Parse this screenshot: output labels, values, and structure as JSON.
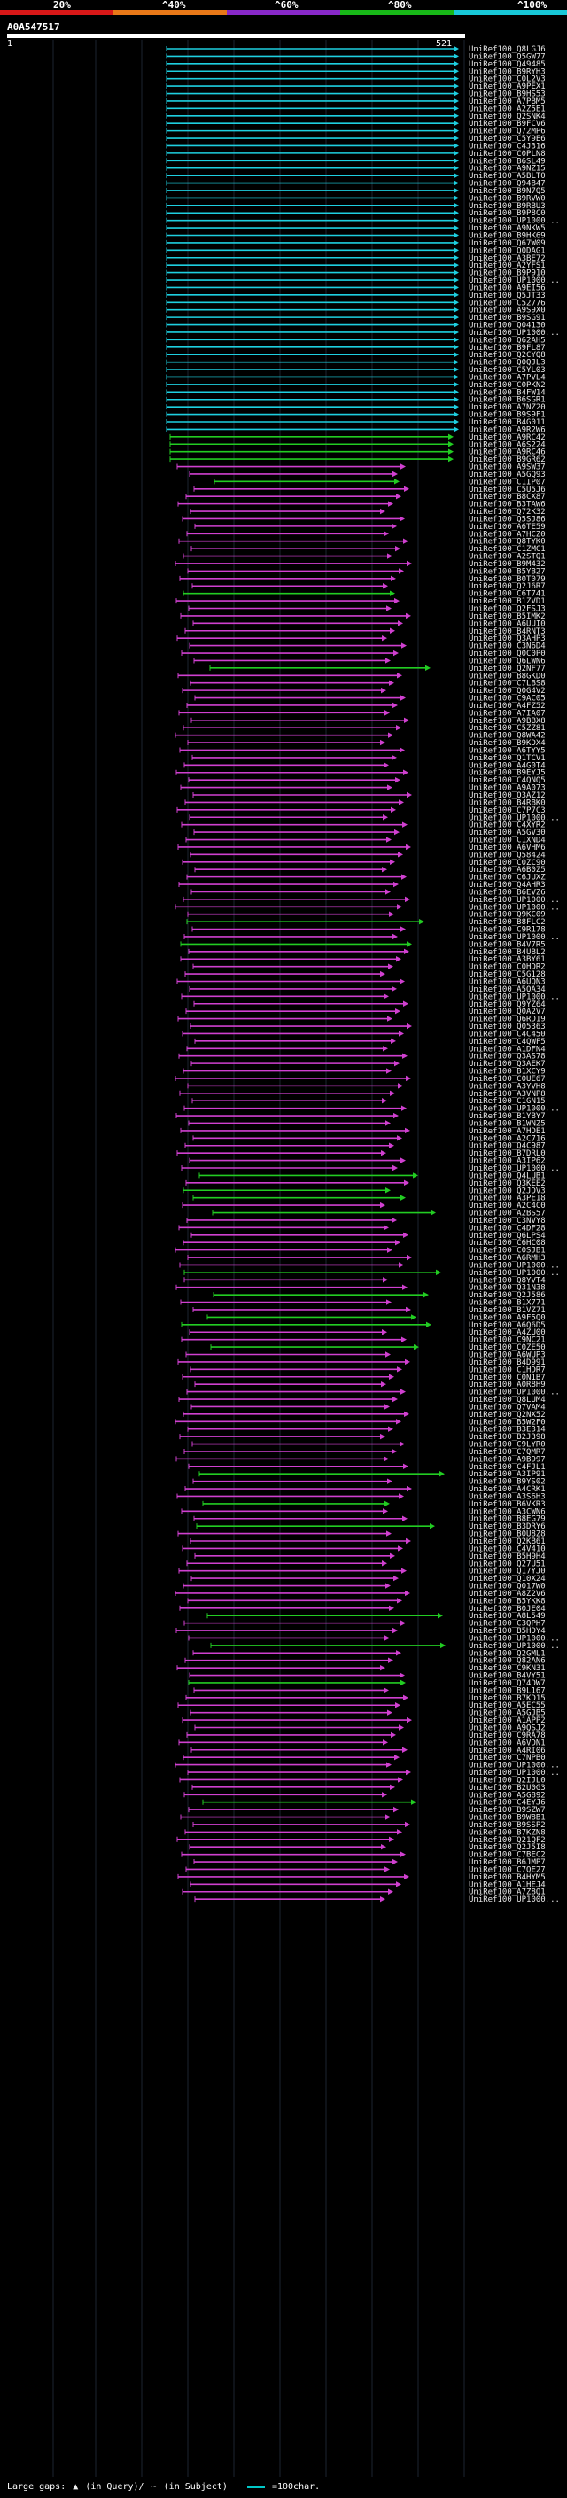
{
  "colorbar": {
    "labels": [
      "20%",
      "^40%",
      "^60%",
      "^80%",
      "^100%"
    ],
    "colors": [
      "#d81818",
      "#e87818",
      "#8828c8",
      "#18b818",
      "#18c8d8"
    ]
  },
  "query": {
    "id": "A0A547517",
    "start": "1",
    "end": "521"
  },
  "hit_colors": {
    "cyan": "#1ecfe0",
    "green": "#22cc22",
    "magenta": "#d040d0"
  },
  "hits": [
    {
      "id": "UniRef100_Q8LGJ6",
      "c": "cyan"
    },
    {
      "id": "UniRef100_Q5GW77",
      "c": "cyan"
    },
    {
      "id": "UniRef100_Q49485",
      "c": "cyan"
    },
    {
      "id": "UniRef100_B9RYH3",
      "c": "cyan"
    },
    {
      "id": "UniRef100_C0L2V3",
      "c": "cyan"
    },
    {
      "id": "UniRef100_A9PEX1",
      "c": "cyan"
    },
    {
      "id": "UniRef100_B9HS53",
      "c": "cyan"
    },
    {
      "id": "UniRef100_A7PBM5",
      "c": "cyan"
    },
    {
      "id": "UniRef100_A2Z5E1",
      "c": "cyan"
    },
    {
      "id": "UniRef100_Q2SNK4",
      "c": "cyan"
    },
    {
      "id": "UniRef100_B9FCV6",
      "c": "cyan"
    },
    {
      "id": "UniRef100_Q72MP6",
      "c": "cyan"
    },
    {
      "id": "UniRef100_C5Y9E6",
      "c": "cyan"
    },
    {
      "id": "UniRef100_C4J316",
      "c": "cyan"
    },
    {
      "id": "UniRef100_C0PLN8",
      "c": "cyan"
    },
    {
      "id": "UniRef100_B6SL49",
      "c": "cyan"
    },
    {
      "id": "UniRef100_A9NZ15",
      "c": "cyan"
    },
    {
      "id": "UniRef100_A5BLT0",
      "c": "cyan"
    },
    {
      "id": "UniRef100_Q94B47",
      "c": "cyan"
    },
    {
      "id": "UniRef100_B9N7Q5",
      "c": "cyan"
    },
    {
      "id": "UniRef100_B9RVW0",
      "c": "cyan"
    },
    {
      "id": "UniRef100_B9RBU3",
      "c": "cyan"
    },
    {
      "id": "UniRef100_B9P8C0",
      "c": "cyan"
    },
    {
      "id": "UniRef100_UP1000...",
      "c": "cyan"
    },
    {
      "id": "UniRef100_A9NKW5",
      "c": "cyan"
    },
    {
      "id": "UniRef100_B9HK69",
      "c": "cyan"
    },
    {
      "id": "UniRef100_Q67W09",
      "c": "cyan"
    },
    {
      "id": "UniRef100_Q0DAG1",
      "c": "cyan"
    },
    {
      "id": "UniRef100_A3BE72",
      "c": "cyan"
    },
    {
      "id": "UniRef100_A2YFS1",
      "c": "cyan"
    },
    {
      "id": "UniRef100_B9P910",
      "c": "cyan"
    },
    {
      "id": "UniRef100_UP1000...",
      "c": "cyan"
    },
    {
      "id": "UniRef100_A9EI56",
      "c": "cyan"
    },
    {
      "id": "UniRef100_Q5JT33",
      "c": "cyan"
    },
    {
      "id": "UniRef100_C52776",
      "c": "cyan"
    },
    {
      "id": "UniRef100_A9S9X0",
      "c": "cyan"
    },
    {
      "id": "UniRef100_B9SG91",
      "c": "cyan"
    },
    {
      "id": "UniRef100_Q04130",
      "c": "cyan"
    },
    {
      "id": "UniRef100_UP1000...",
      "c": "cyan"
    },
    {
      "id": "UniRef100_Q62AH5",
      "c": "cyan"
    },
    {
      "id": "UniRef100_B9FL87",
      "c": "cyan"
    },
    {
      "id": "UniRef100_Q2CYQ8",
      "c": "cyan"
    },
    {
      "id": "UniRef100_Q0QJL3",
      "c": "cyan"
    },
    {
      "id": "UniRef100_C5YL03",
      "c": "cyan"
    },
    {
      "id": "UniRef100_A7PVL4",
      "c": "cyan"
    },
    {
      "id": "UniRef100_C0PKN2",
      "c": "cyan"
    },
    {
      "id": "UniRef100_B4FW14",
      "c": "cyan"
    },
    {
      "id": "UniRef100_B6SGR1",
      "c": "cyan"
    },
    {
      "id": "UniRef100_A7NZ20",
      "c": "cyan"
    },
    {
      "id": "UniRef100_B9S9F1",
      "c": "cyan"
    },
    {
      "id": "UniRef100_B4G011",
      "c": "cyan"
    },
    {
      "id": "UniRef100_A9R2W6",
      "c": "cyan"
    },
    {
      "id": "UniRef100_A9RC42",
      "c": "green"
    },
    {
      "id": "UniRef100_A6S224",
      "c": "green"
    },
    {
      "id": "UniRef100_A9RC46",
      "c": "green"
    },
    {
      "id": "UniRef100_B9GR62",
      "c": "green"
    },
    {
      "id": "UniRef100_A9SW37",
      "c": "magenta"
    },
    {
      "id": "UniRef100_A5GQ93",
      "c": "magenta"
    },
    {
      "id": "UniRef100_C1IP07",
      "c": "green"
    },
    {
      "id": "UniRef100_C5U5J6",
      "c": "magenta"
    },
    {
      "id": "UniRef100_B8CX87",
      "c": "magenta"
    },
    {
      "id": "UniRef100_B3TAW6",
      "c": "magenta"
    },
    {
      "id": "UniRef100_Q72K32",
      "c": "magenta"
    },
    {
      "id": "UniRef100_Q5SJ86",
      "c": "magenta"
    },
    {
      "id": "UniRef100_A6TE59",
      "c": "magenta"
    },
    {
      "id": "UniRef100_A7HCZ0",
      "c": "magenta"
    },
    {
      "id": "UniRef100_Q8TYK0",
      "c": "magenta"
    },
    {
      "id": "UniRef100_C1ZMC1",
      "c": "magenta"
    },
    {
      "id": "UniRef100_A2STQ1",
      "c": "magenta"
    },
    {
      "id": "UniRef100_B9M432",
      "c": "magenta"
    },
    {
      "id": "UniRef100_B5YB27",
      "c": "magenta"
    },
    {
      "id": "UniRef100_B0T079",
      "c": "magenta"
    },
    {
      "id": "UniRef100_Q2J6R7",
      "c": "magenta"
    },
    {
      "id": "UniRef100_C6T741",
      "c": "green"
    },
    {
      "id": "UniRef100_B1ZVD1",
      "c": "magenta"
    },
    {
      "id": "UniRef100_Q2FSJ3",
      "c": "magenta"
    },
    {
      "id": "UniRef100_B5IMK2",
      "c": "magenta"
    },
    {
      "id": "UniRef100_A6UUI0",
      "c": "magenta"
    },
    {
      "id": "UniRef100_B4RNT3",
      "c": "magenta"
    },
    {
      "id": "UniRef100_Q3AHP3",
      "c": "magenta"
    },
    {
      "id": "UniRef100_C3N6D4",
      "c": "magenta"
    },
    {
      "id": "UniRef100_Q0C0P0",
      "c": "magenta"
    },
    {
      "id": "UniRef100_Q6LWN6",
      "c": "magenta"
    },
    {
      "id": "UniRef100_Q2NF77",
      "c": "green"
    },
    {
      "id": "UniRef100_B8GKD0",
      "c": "magenta"
    },
    {
      "id": "UniRef100_C7LBS8",
      "c": "magenta"
    },
    {
      "id": "UniRef100_Q0G4V2",
      "c": "magenta"
    },
    {
      "id": "UniRef100_C9AC05",
      "c": "magenta"
    },
    {
      "id": "UniRef100_A4FZ52",
      "c": "magenta"
    },
    {
      "id": "UniRef100_A7IA07",
      "c": "magenta"
    },
    {
      "id": "UniRef100_A9BBX8",
      "c": "magenta"
    },
    {
      "id": "UniRef100_C5ZZ81",
      "c": "magenta"
    },
    {
      "id": "UniRef100_Q8WA42",
      "c": "magenta"
    },
    {
      "id": "UniRef100_B9KDX4",
      "c": "magenta"
    },
    {
      "id": "UniRef100_A6TYY5",
      "c": "magenta"
    },
    {
      "id": "UniRef100_Q1TCV1",
      "c": "magenta"
    },
    {
      "id": "UniRef100_A4G0T4",
      "c": "magenta"
    },
    {
      "id": "UniRef100_B9EYJ5",
      "c": "magenta"
    },
    {
      "id": "UniRef100_C4QNQ5",
      "c": "magenta"
    },
    {
      "id": "UniRef100_A9A073",
      "c": "magenta"
    },
    {
      "id": "UniRef100_Q3AZ12",
      "c": "magenta"
    },
    {
      "id": "UniRef100_B4RBK0",
      "c": "magenta"
    },
    {
      "id": "UniRef100_C7P7C3",
      "c": "magenta"
    },
    {
      "id": "UniRef100_UP1000...",
      "c": "magenta"
    },
    {
      "id": "UniRef100_C4XYR2",
      "c": "magenta"
    },
    {
      "id": "UniRef100_A5GV30",
      "c": "magenta"
    },
    {
      "id": "UniRef100_C1XND4",
      "c": "magenta"
    },
    {
      "id": "UniRef100_A6VHM6",
      "c": "magenta"
    },
    {
      "id": "UniRef100_Q58424",
      "c": "magenta"
    },
    {
      "id": "UniRef100_C0ZC90",
      "c": "magenta"
    },
    {
      "id": "UniRef100_A6B0Z5",
      "c": "magenta"
    },
    {
      "id": "UniRef100_C6JUXZ",
      "c": "magenta"
    },
    {
      "id": "UniRef100_Q4AHR3",
      "c": "magenta"
    },
    {
      "id": "UniRef100_B6EVZ6",
      "c": "magenta"
    },
    {
      "id": "UniRef100_UP1000...",
      "c": "magenta"
    },
    {
      "id": "UniRef100_UP1000...",
      "c": "magenta"
    },
    {
      "id": "UniRef100_Q9KC09",
      "c": "magenta"
    },
    {
      "id": "UniRef100_B8FLC2",
      "c": "green"
    },
    {
      "id": "UniRef100_C9R178",
      "c": "magenta"
    },
    {
      "id": "UniRef100_UP1000...",
      "c": "magenta"
    },
    {
      "id": "UniRef100_B4V7R5",
      "c": "green"
    },
    {
      "id": "UniRef100_B4UBL2",
      "c": "magenta"
    },
    {
      "id": "UniRef100_A3BY61",
      "c": "magenta"
    },
    {
      "id": "UniRef100_C0HDR2",
      "c": "magenta"
    },
    {
      "id": "UniRef100_C5G128",
      "c": "magenta"
    },
    {
      "id": "UniRef100_A6UQN3",
      "c": "magenta"
    },
    {
      "id": "UniRef100_A5QA34",
      "c": "magenta"
    },
    {
      "id": "UniRef100_UP1000...",
      "c": "magenta"
    },
    {
      "id": "UniRef100_Q9YZ64",
      "c": "magenta"
    },
    {
      "id": "UniRef100_Q0A2V7",
      "c": "magenta"
    },
    {
      "id": "UniRef100_Q6RD19",
      "c": "magenta"
    },
    {
      "id": "UniRef100_Q05363",
      "c": "magenta"
    },
    {
      "id": "UniRef100_C4C450",
      "c": "magenta"
    },
    {
      "id": "UniRef100_C4QWF5",
      "c": "magenta"
    },
    {
      "id": "UniRef100_A1DFN4",
      "c": "magenta"
    },
    {
      "id": "UniRef100_Q3AS78",
      "c": "magenta"
    },
    {
      "id": "UniRef100_Q3AEK7",
      "c": "magenta"
    },
    {
      "id": "UniRef100_B1XCY9",
      "c": "magenta"
    },
    {
      "id": "UniRef100_C0UE67",
      "c": "magenta"
    },
    {
      "id": "UniRef100_A3YVH8",
      "c": "magenta"
    },
    {
      "id": "UniRef100_A3VNP8",
      "c": "magenta"
    },
    {
      "id": "UniRef100_C1GN15",
      "c": "magenta"
    },
    {
      "id": "UniRef100_UP1000...",
      "c": "magenta"
    },
    {
      "id": "UniRef100_B1YBY7",
      "c": "magenta"
    },
    {
      "id": "UniRef100_B1WNZ5",
      "c": "magenta"
    },
    {
      "id": "UniRef100_A7HDE1",
      "c": "magenta"
    },
    {
      "id": "UniRef100_A2C716",
      "c": "magenta"
    },
    {
      "id": "UniRef100_Q4C987",
      "c": "magenta"
    },
    {
      "id": "UniRef100_B7DRL0",
      "c": "magenta"
    },
    {
      "id": "UniRef100_A3IP62",
      "c": "magenta"
    },
    {
      "id": "UniRef100_UP1000...",
      "c": "magenta"
    },
    {
      "id": "UniRef100_Q4LUB1",
      "c": "green"
    },
    {
      "id": "UniRef100_Q3KEE2",
      "c": "magenta"
    },
    {
      "id": "UniRef100_Q2JDV3",
      "c": "green"
    },
    {
      "id": "UniRef100_A3PE18",
      "c": "green"
    },
    {
      "id": "UniRef100_A2C4C0",
      "c": "magenta"
    },
    {
      "id": "UniRef100_A2BS57",
      "c": "green"
    },
    {
      "id": "UniRef100_C3NVY8",
      "c": "magenta"
    },
    {
      "id": "UniRef100_C4DF28",
      "c": "magenta"
    },
    {
      "id": "UniRef100_Q6LPS4",
      "c": "magenta"
    },
    {
      "id": "UniRef100_C6HC08",
      "c": "magenta"
    },
    {
      "id": "UniRef100_C0SJB1",
      "c": "magenta"
    },
    {
      "id": "UniRef100_A6RMH3",
      "c": "magenta"
    },
    {
      "id": "UniRef100_UP1000...",
      "c": "magenta"
    },
    {
      "id": "UniRef100_UP1000...",
      "c": "green"
    },
    {
      "id": "UniRef100_Q8YVT4",
      "c": "magenta"
    },
    {
      "id": "UniRef100_Q31N38",
      "c": "magenta"
    },
    {
      "id": "UniRef100_Q2J586",
      "c": "green"
    },
    {
      "id": "UniRef100_B1X771",
      "c": "magenta"
    },
    {
      "id": "UniRef100_B1VZ71",
      "c": "magenta"
    },
    {
      "id": "UniRef100_A9F5Q0",
      "c": "green"
    },
    {
      "id": "UniRef100_A6Q6D5",
      "c": "green"
    },
    {
      "id": "UniRef100_A4ZU00",
      "c": "magenta"
    },
    {
      "id": "UniRef100_C9NC21",
      "c": "magenta"
    },
    {
      "id": "UniRef100_C0ZE50",
      "c": "green"
    },
    {
      "id": "UniRef100_A6WUP3",
      "c": "magenta"
    },
    {
      "id": "UniRef100_B4D991",
      "c": "magenta"
    },
    {
      "id": "UniRef100_C1HDR7",
      "c": "magenta"
    },
    {
      "id": "UniRef100_C0N1B7",
      "c": "magenta"
    },
    {
      "id": "UniRef100_A0R8H9",
      "c": "magenta"
    },
    {
      "id": "UniRef100_UP1000...",
      "c": "magenta"
    },
    {
      "id": "UniRef100_Q8LUM4",
      "c": "magenta"
    },
    {
      "id": "UniRef100_Q7VAM4",
      "c": "magenta"
    },
    {
      "id": "UniRef100_Q2NX52",
      "c": "magenta"
    },
    {
      "id": "UniRef100_B5W2F0",
      "c": "magenta"
    },
    {
      "id": "UniRef100_B3E314",
      "c": "magenta"
    },
    {
      "id": "UniRef100_B2J398",
      "c": "magenta"
    },
    {
      "id": "UniRef100_C9LYR0",
      "c": "magenta"
    },
    {
      "id": "UniRef100_C7QMR7",
      "c": "magenta"
    },
    {
      "id": "UniRef100_A9B997",
      "c": "magenta"
    },
    {
      "id": "UniRef100_C4FJL1",
      "c": "magenta"
    },
    {
      "id": "UniRef100_A3IP91",
      "c": "green"
    },
    {
      "id": "UniRef100_B9YS02",
      "c": "magenta"
    },
    {
      "id": "UniRef100_A4CRK1",
      "c": "magenta"
    },
    {
      "id": "UniRef100_A3S6H3",
      "c": "magenta"
    },
    {
      "id": "UniRef100_B6VKR3",
      "c": "green"
    },
    {
      "id": "UniRef100_A3CWN6",
      "c": "magenta"
    },
    {
      "id": "UniRef100_B8EG79",
      "c": "magenta"
    },
    {
      "id": "UniRef100_B3DRY6",
      "c": "green"
    },
    {
      "id": "UniRef100_B0U8Z8",
      "c": "magenta"
    },
    {
      "id": "UniRef100_Q2KB61",
      "c": "magenta"
    },
    {
      "id": "UniRef100_C4V410",
      "c": "magenta"
    },
    {
      "id": "UniRef100_B5H9H4",
      "c": "magenta"
    },
    {
      "id": "UniRef100_Q27U51",
      "c": "magenta"
    },
    {
      "id": "UniRef100_Q17YJ0",
      "c": "magenta"
    },
    {
      "id": "UniRef100_Q10X24",
      "c": "magenta"
    },
    {
      "id": "UniRef100_Q017W0",
      "c": "magenta"
    },
    {
      "id": "UniRef100_A8Z2V6",
      "c": "magenta"
    },
    {
      "id": "UniRef100_B5YKK8",
      "c": "magenta"
    },
    {
      "id": "UniRef100_B0JE04",
      "c": "magenta"
    },
    {
      "id": "UniRef100_A8L549",
      "c": "green"
    },
    {
      "id": "UniRef100_C3QPH7",
      "c": "magenta"
    },
    {
      "id": "UniRef100_B5HDY4",
      "c": "magenta"
    },
    {
      "id": "UniRef100_UP1000...",
      "c": "magenta"
    },
    {
      "id": "UniRef100_UP1000...",
      "c": "green"
    },
    {
      "id": "UniRef100_Q2GML1",
      "c": "magenta"
    },
    {
      "id": "UniRef100_Q82AN6",
      "c": "magenta"
    },
    {
      "id": "UniRef100_C9KN31",
      "c": "magenta"
    },
    {
      "id": "UniRef100_B4VY51",
      "c": "magenta"
    },
    {
      "id": "UniRef100_Q74DW7",
      "c": "green"
    },
    {
      "id": "UniRef100_B9L167",
      "c": "magenta"
    },
    {
      "id": "UniRef100_B7KD15",
      "c": "magenta"
    },
    {
      "id": "UniRef100_A5EC55",
      "c": "magenta"
    },
    {
      "id": "UniRef100_A5GJB5",
      "c": "magenta"
    },
    {
      "id": "UniRef100_A1APP2",
      "c": "magenta"
    },
    {
      "id": "UniRef100_A9QSJ2",
      "c": "magenta"
    },
    {
      "id": "UniRef100_C9RA78",
      "c": "magenta"
    },
    {
      "id": "UniRef100_A6VDN1",
      "c": "magenta"
    },
    {
      "id": "UniRef100_A4RI06",
      "c": "magenta"
    },
    {
      "id": "UniRef100_C7NPB0",
      "c": "magenta"
    },
    {
      "id": "UniRef100_UP1000...",
      "c": "magenta"
    },
    {
      "id": "UniRef100_UP1000...",
      "c": "magenta"
    },
    {
      "id": "UniRef100_Q2IJL0",
      "c": "magenta"
    },
    {
      "id": "UniRef100_B2U0G3",
      "c": "magenta"
    },
    {
      "id": "UniRef100_A5G892",
      "c": "magenta"
    },
    {
      "id": "UniRef100_C4EYJ6",
      "c": "green"
    },
    {
      "id": "UniRef100_B9SZW7",
      "c": "magenta"
    },
    {
      "id": "UniRef100_B9W8B1",
      "c": "magenta"
    },
    {
      "id": "UniRef100_B9SSP2",
      "c": "magenta"
    },
    {
      "id": "UniRef100_B7KZN8",
      "c": "magenta"
    },
    {
      "id": "UniRef100_Q21QF2",
      "c": "magenta"
    },
    {
      "id": "UniRef100_Q2J5I8",
      "c": "magenta"
    },
    {
      "id": "UniRef100_C7BEC2",
      "c": "magenta"
    },
    {
      "id": "UniRef100_B6JMP7",
      "c": "magenta"
    },
    {
      "id": "UniRef100_C7QE27",
      "c": "magenta"
    },
    {
      "id": "UniRef100_B4HYM5",
      "c": "magenta"
    },
    {
      "id": "UniRef100_A1HEJ4",
      "c": "magenta"
    },
    {
      "id": "UniRef100_A7Z8Q1",
      "c": "magenta"
    },
    {
      "id": "UniRef100_UP1000...",
      "c": "magenta"
    }
  ],
  "legend": {
    "text1": "Large gaps:",
    "sym1": "▲",
    "text2": "(in Query)/",
    "sym2": "~",
    "text3": "(in Subject)",
    "text4": "=100char."
  }
}
